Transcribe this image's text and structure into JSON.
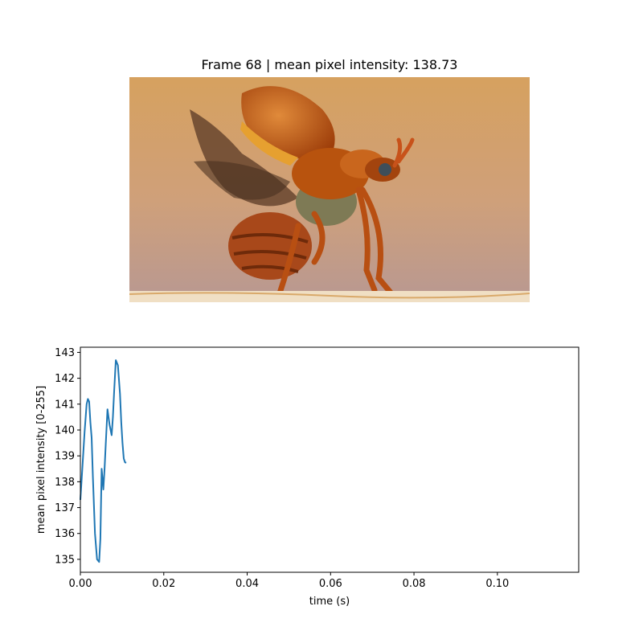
{
  "header": {
    "title": "Frame 68 | mean pixel intensity: 138.73"
  },
  "image": {
    "subject": "beetle-taking-off-photo",
    "colors": {
      "bg_top": "#D6A15F",
      "bg_bottom": "#B89892",
      "shell": "#B8530E",
      "shell_light": "#D9782B",
      "branch": "#F0DFC4"
    }
  },
  "chart_data": {
    "type": "line",
    "xlabel": "time (s)",
    "ylabel": "mean pixel intensity [0-255]",
    "xlim": [
      0,
      0.1195
    ],
    "ylim": [
      134.5,
      143.2
    ],
    "xticks": [
      0.0,
      0.02,
      0.04,
      0.06,
      0.08,
      0.1
    ],
    "xtick_labels": [
      "0.00",
      "0.02",
      "0.04",
      "0.06",
      "0.08",
      "0.10"
    ],
    "yticks": [
      135,
      136,
      137,
      138,
      139,
      140,
      141,
      142,
      143
    ],
    "ytick_labels": [
      "135",
      "136",
      "137",
      "138",
      "139",
      "140",
      "141",
      "142",
      "143"
    ],
    "grid": false,
    "color": "#1f77b4",
    "series": [
      {
        "x": [
          0.0,
          0.0005,
          0.001,
          0.0015,
          0.0018,
          0.0021,
          0.0024,
          0.0027,
          0.003,
          0.0035,
          0.004,
          0.0045,
          0.0048,
          0.0051,
          0.0055,
          0.0058,
          0.0061,
          0.0065,
          0.007,
          0.0075,
          0.0078,
          0.0081,
          0.0085,
          0.009,
          0.0095,
          0.0098,
          0.0101,
          0.0104,
          0.0107,
          0.011
        ],
        "y": [
          137.3,
          138.6,
          139.9,
          141.0,
          141.2,
          141.1,
          140.3,
          139.7,
          138.2,
          136.0,
          135.0,
          134.9,
          135.8,
          138.5,
          137.7,
          138.5,
          139.5,
          140.8,
          140.2,
          139.8,
          140.5,
          141.5,
          142.7,
          142.5,
          141.4,
          140.3,
          139.5,
          138.9,
          138.75,
          138.73
        ]
      }
    ]
  }
}
